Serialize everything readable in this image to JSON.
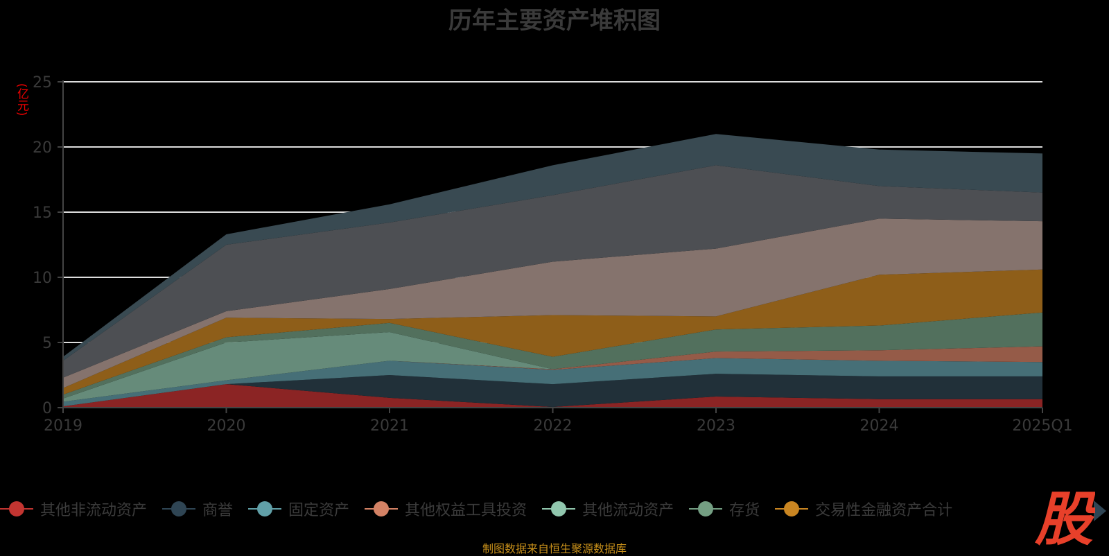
{
  "title": "历年主要资产堆积图",
  "unit": "(亿元)",
  "source": "制图数据来自恒生聚源数据库",
  "logo_text": "股",
  "legend_pager_icon": "triangle-right-icon",
  "chart_data": {
    "type": "area",
    "stacked": true,
    "title": "历年主要资产堆积图",
    "ylabel": "(亿元)",
    "xlabel": "",
    "categories": [
      "2019",
      "2020",
      "2021",
      "2022",
      "2023",
      "2024",
      "2025Q1"
    ],
    "ylim": [
      0,
      25
    ],
    "yticks": [
      "0",
      "5",
      "10",
      "15",
      "20",
      "25"
    ],
    "grid": true,
    "legend_position": "bottom",
    "series": [
      {
        "name": "其他非流动资产",
        "color": "#c23531",
        "fill": "#8b2424",
        "values": [
          0.1,
          1.8,
          0.75,
          0.05,
          0.85,
          0.65,
          0.65
        ]
      },
      {
        "name": "商誉",
        "color": "#2f4554",
        "fill": "#213039",
        "values": [
          0.0,
          0.0,
          1.75,
          1.75,
          1.75,
          1.75,
          1.75
        ]
      },
      {
        "name": "固定资产",
        "color": "#61a0a8",
        "fill": "#466f77",
        "values": [
          0.35,
          0.3,
          1.1,
          1.1,
          1.2,
          1.2,
          1.1
        ]
      },
      {
        "name": "其他权益工具投资",
        "color": "#d48265",
        "fill": "#955b48",
        "values": [
          0.0,
          0.0,
          0.0,
          0.05,
          0.5,
          0.8,
          1.2
        ]
      },
      {
        "name": "其他流动资产",
        "color": "#91c7ae",
        "fill": "#668b7a",
        "values": [
          0.25,
          2.9,
          2.2,
          0.0,
          0.0,
          0.0,
          0.0
        ]
      },
      {
        "name": "存货",
        "color": "#749f83",
        "fill": "#52705d",
        "values": [
          0.3,
          0.4,
          0.7,
          0.95,
          1.7,
          1.9,
          2.6
        ]
      },
      {
        "name": "交易性金融资产合计",
        "color": "#ca8622",
        "fill": "#8e5e19",
        "values": [
          0.5,
          1.5,
          0.3,
          3.2,
          1.0,
          3.9,
          3.3
        ]
      },
      {
        "name": "",
        "color": "#bda29a",
        "fill": "#85736d",
        "values": [
          0.8,
          0.5,
          2.3,
          4.1,
          5.2,
          4.3,
          3.7
        ]
      },
      {
        "name": "",
        "color": "#6e7074",
        "fill": "#4d4f53",
        "values": [
          1.3,
          5.1,
          5.1,
          5.1,
          6.4,
          2.5,
          2.2
        ]
      },
      {
        "name": "",
        "color": "#546570",
        "fill": "#394a52",
        "values": [
          0.3,
          0.8,
          1.4,
          2.3,
          2.4,
          2.8,
          3.0
        ]
      }
    ]
  }
}
